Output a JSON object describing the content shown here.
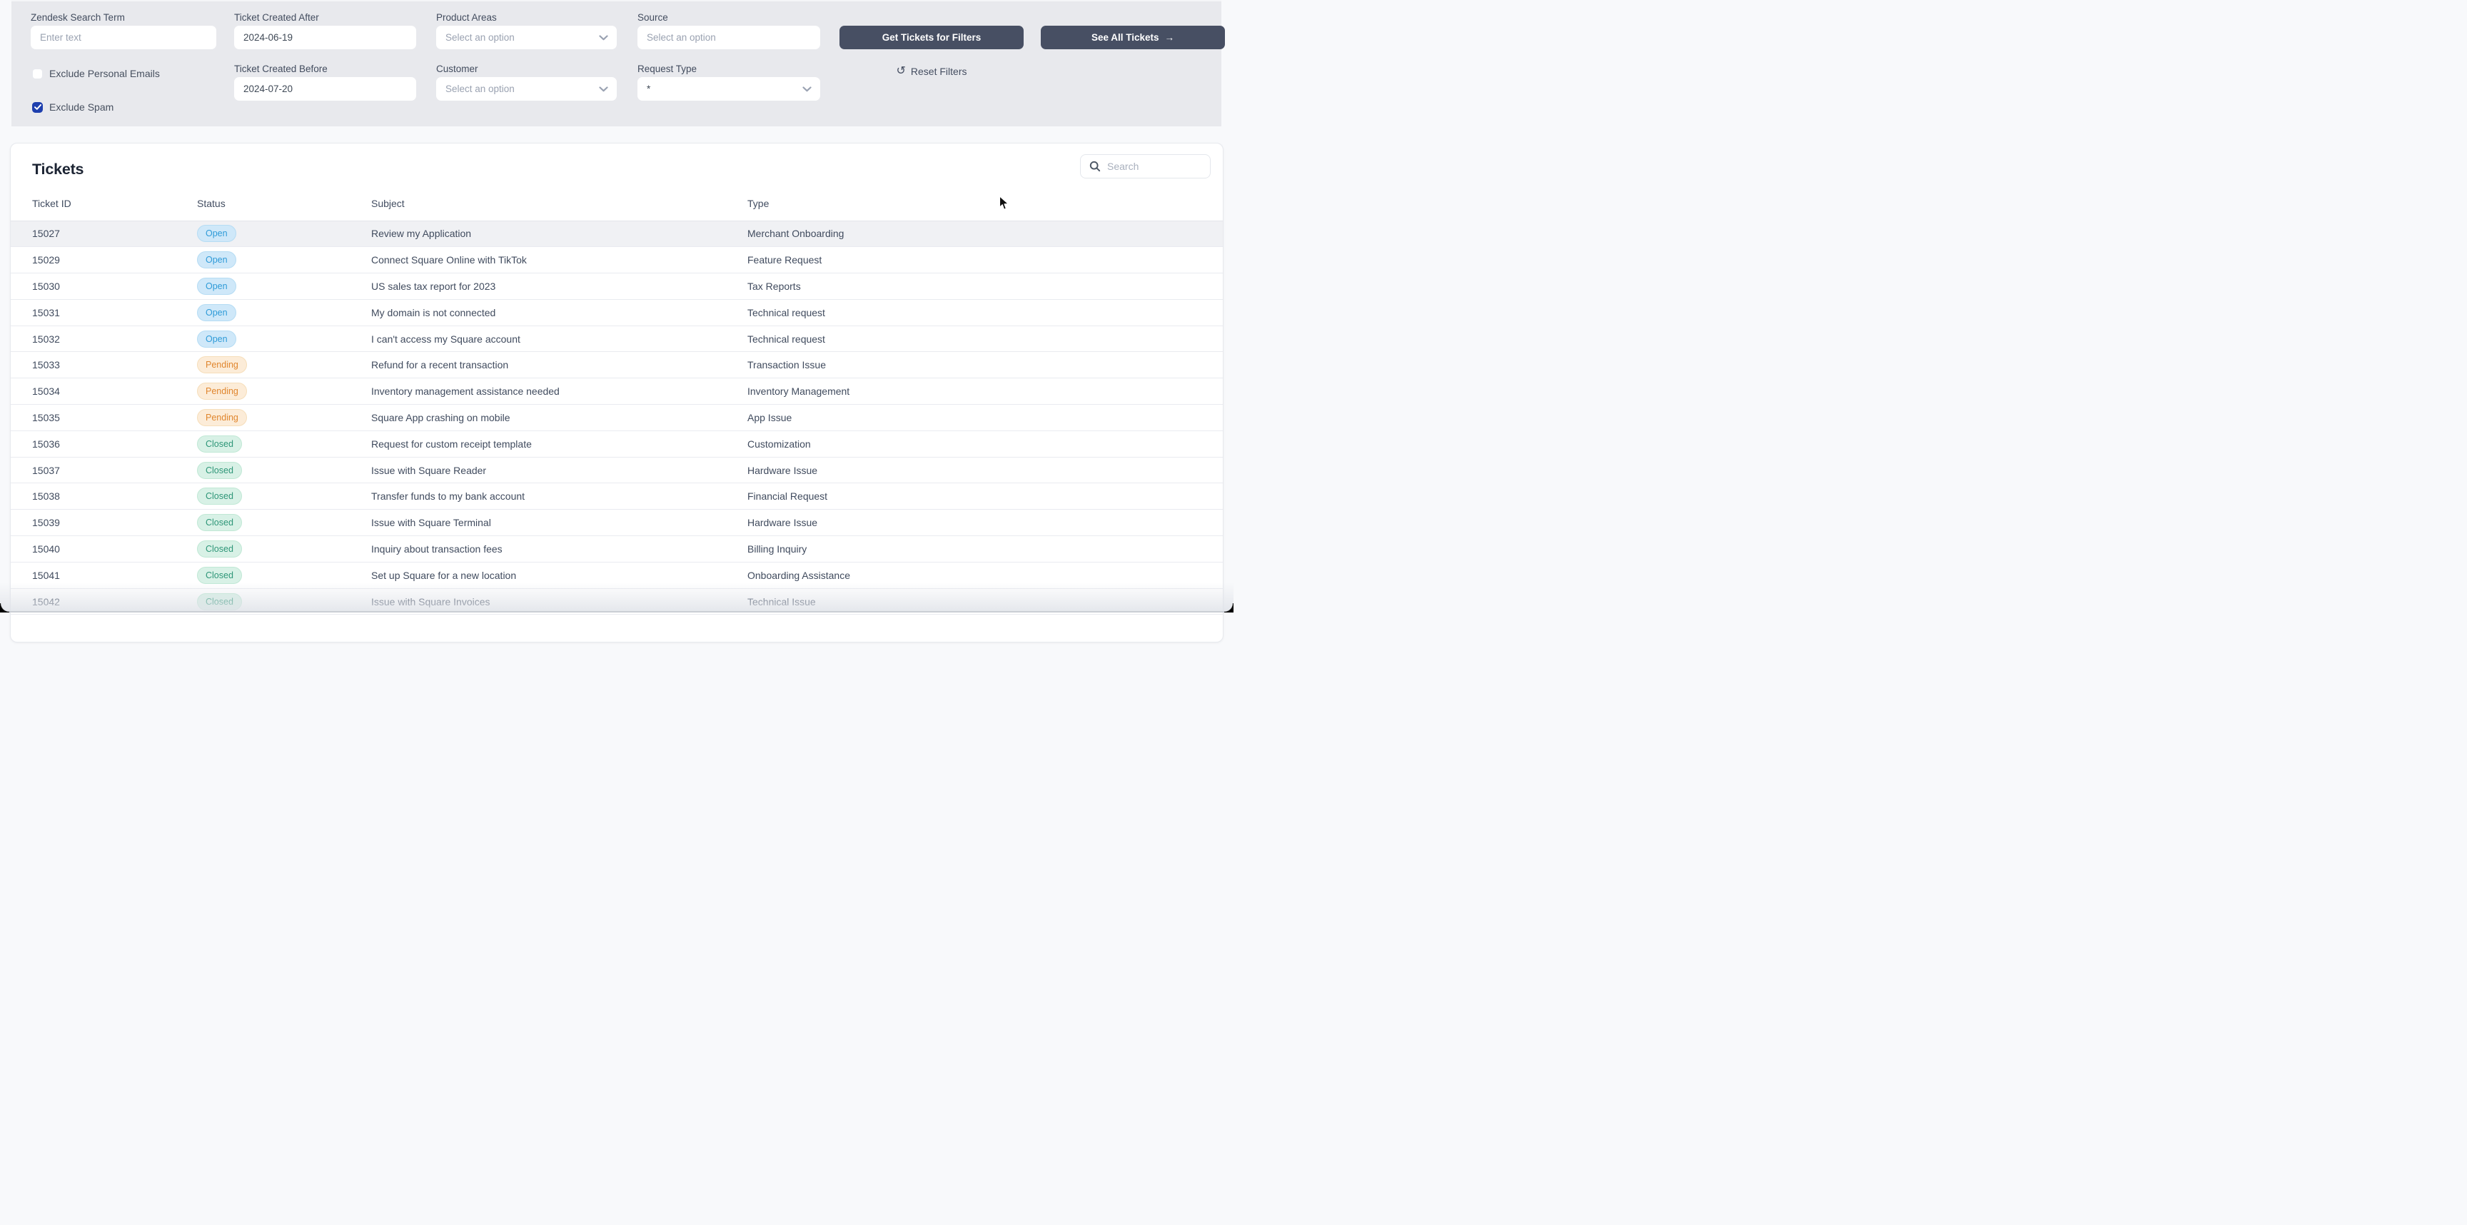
{
  "colors": {
    "accent_checkbox": "#1e3fae",
    "dark_button_bg": "#474f63",
    "panel_bg": "#e8e9ed",
    "page_bg": "#f8f9fb",
    "highlight_row_bg": "#f0f1f4"
  },
  "icons": {
    "reset": "↺",
    "see_all_arrow": "→",
    "search": "magnifier",
    "chevron": "chevron-down",
    "checkbox_check": "checkmark"
  },
  "filters": {
    "zendesk_search": {
      "label": "Zendesk Search Term",
      "placeholder": "Enter text",
      "value": ""
    },
    "created_after": {
      "label": "Ticket Created After",
      "value": "2024-06-19"
    },
    "created_before": {
      "label": "Ticket Created Before",
      "value": "2024-07-20"
    },
    "product_areas": {
      "label": "Product Areas",
      "value": "Select an option"
    },
    "customer": {
      "label": "Customer",
      "value": "Select an option"
    },
    "source": {
      "label": "Source",
      "value": "Select an option"
    },
    "request_type": {
      "label": "Request Type",
      "value": "*"
    },
    "exclude_personal_emails": {
      "label": "Exclude Personal Emails",
      "checked": false
    },
    "exclude_spam": {
      "label": "Exclude Spam",
      "checked": true
    },
    "get_tickets_button": "Get Tickets for Filters",
    "see_all_button": {
      "label": "See All Tickets",
      "arrow": "→"
    },
    "reset_button": "Reset Filters"
  },
  "tickets": {
    "title": "Tickets",
    "search_placeholder": "Search",
    "columns": [
      "Ticket ID",
      "Status",
      "Subject",
      "Type"
    ],
    "status_styles": {
      "Open": {
        "text": "#2f9bd8",
        "bg": "#cfe8f9",
        "border": "#b5dcf4"
      },
      "Pending": {
        "text": "#e0862e",
        "bg": "#fcecd8",
        "border": "#f6deba"
      },
      "Closed": {
        "text": "#2e9678",
        "bg": "#d8f1e6",
        "border": "#c0e8d5"
      }
    },
    "rows": [
      {
        "id": "15027",
        "status": "Open",
        "subject": "Review my Application",
        "type": "Merchant Onboarding"
      },
      {
        "id": "15029",
        "status": "Open",
        "subject": "Connect Square Online with TikTok",
        "type": "Feature Request"
      },
      {
        "id": "15030",
        "status": "Open",
        "subject": "US sales tax report for 2023",
        "type": "Tax Reports"
      },
      {
        "id": "15031",
        "status": "Open",
        "subject": "My domain is not connected",
        "type": "Technical request"
      },
      {
        "id": "15032",
        "status": "Open",
        "subject": "I can't access my Square account",
        "type": "Technical request"
      },
      {
        "id": "15033",
        "status": "Pending",
        "subject": "Refund for a recent transaction",
        "type": "Transaction Issue"
      },
      {
        "id": "15034",
        "status": "Pending",
        "subject": "Inventory management assistance needed",
        "type": "Inventory Management"
      },
      {
        "id": "15035",
        "status": "Pending",
        "subject": "Square App crashing on mobile",
        "type": "App Issue"
      },
      {
        "id": "15036",
        "status": "Closed",
        "subject": "Request for custom receipt template",
        "type": "Customization"
      },
      {
        "id": "15037",
        "status": "Closed",
        "subject": "Issue with Square Reader",
        "type": "Hardware Issue"
      },
      {
        "id": "15038",
        "status": "Closed",
        "subject": "Transfer funds to my bank account",
        "type": "Financial Request"
      },
      {
        "id": "15039",
        "status": "Closed",
        "subject": "Issue with Square Terminal",
        "type": "Hardware Issue"
      },
      {
        "id": "15040",
        "status": "Closed",
        "subject": "Inquiry about transaction fees",
        "type": "Billing Inquiry"
      },
      {
        "id": "15041",
        "status": "Closed",
        "subject": "Set up Square for a new location",
        "type": "Onboarding Assistance"
      },
      {
        "id": "15042",
        "status": "Closed",
        "subject": "Issue with Square Invoices",
        "type": "Technical Issue"
      }
    ]
  }
}
